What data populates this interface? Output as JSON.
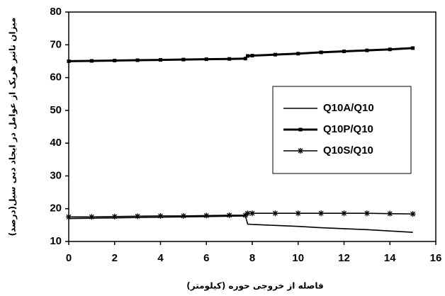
{
  "chart_data": {
    "type": "line",
    "x_label": "فاصله از خروجی حوره (کیلومتر)",
    "y_label": "میزان تاثیر هریک از عوامل در ایجاد دبی سیل(درصد)",
    "x": [
      0,
      1,
      2,
      3,
      4,
      5,
      6,
      7,
      7.7,
      7.8,
      8,
      9,
      10,
      11,
      12,
      13,
      14,
      15
    ],
    "series": [
      {
        "name": "Q10A/Q10",
        "color": "#000000",
        "marker": "none",
        "values": [
          17,
          17.1,
          17.2,
          17.3,
          17.4,
          17.5,
          17.6,
          17.7,
          17.8,
          15.3,
          15.2,
          14.9,
          14.6,
          14.2,
          13.9,
          13.6,
          13.2,
          12.8
        ]
      },
      {
        "name": "Q10P/Q10",
        "color": "#000000",
        "marker": "square",
        "values": [
          65,
          65.1,
          65.2,
          65.3,
          65.4,
          65.5,
          65.6,
          65.7,
          65.8,
          66.6,
          66.7,
          67,
          67.3,
          67.7,
          68,
          68.3,
          68.6,
          69
        ]
      },
      {
        "name": "Q10S/Q10",
        "color": "#000000",
        "marker": "star",
        "values": [
          17.5,
          17.5,
          17.6,
          17.7,
          17.8,
          17.8,
          17.9,
          18,
          18,
          18.6,
          18.6,
          18.6,
          18.6,
          18.6,
          18.6,
          18.6,
          18.5,
          18.4
        ]
      }
    ],
    "xlim": [
      0,
      16
    ],
    "xticks": [
      0,
      2,
      4,
      6,
      8,
      10,
      12,
      14,
      16
    ],
    "ylim": [
      10,
      80
    ],
    "yticks": [
      10,
      20,
      30,
      40,
      50,
      60,
      70,
      80
    ],
    "grid": false,
    "legend": "right"
  }
}
